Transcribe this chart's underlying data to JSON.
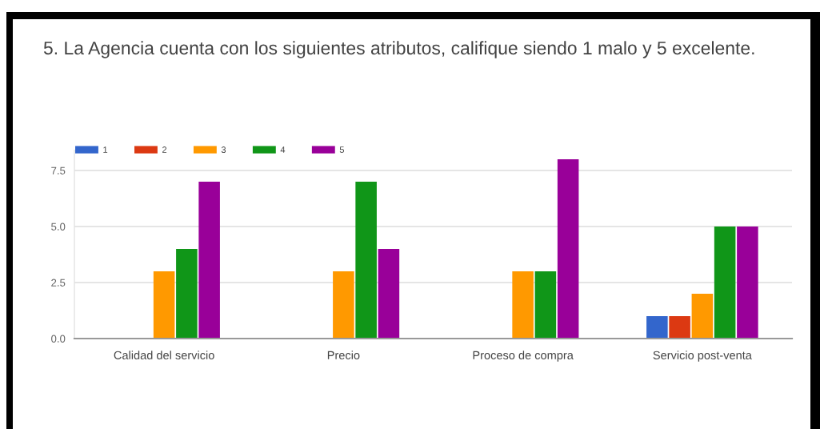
{
  "chart_data": {
    "type": "bar",
    "title": "5. La Agencia cuenta con los siguientes atributos, califique siendo 1 malo y 5 excelente.",
    "categories": [
      "Calidad del servicio",
      "Precio",
      "Proceso de compra",
      "Servicio post-venta"
    ],
    "series": [
      {
        "name": "1",
        "color": "#3366cc",
        "values": [
          0,
          0,
          0,
          1
        ]
      },
      {
        "name": "2",
        "color": "#dc3912",
        "values": [
          0,
          0,
          0,
          1
        ]
      },
      {
        "name": "3",
        "color": "#ff9900",
        "values": [
          3,
          3,
          3,
          2
        ]
      },
      {
        "name": "4",
        "color": "#109618",
        "values": [
          4,
          7,
          3,
          5
        ]
      },
      {
        "name": "5",
        "color": "#990099",
        "values": [
          7,
          4,
          8,
          5
        ]
      }
    ],
    "ylim": [
      0,
      8.4
    ],
    "yticks": [
      {
        "value": 0,
        "label": "0.0"
      },
      2.5,
      {
        "value": 5,
        "label": "5.0"
      },
      7.5
    ],
    "grid": "y",
    "legend": "top left"
  }
}
